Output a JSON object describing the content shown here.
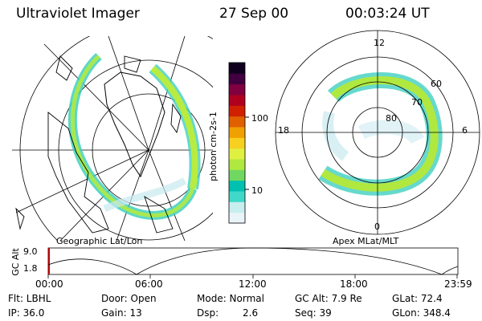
{
  "header": {
    "instrument": "Ultraviolet Imager",
    "date": "27 Sep 00",
    "time": "00:03:24 UT"
  },
  "geo_panel": {
    "label": "Geographic Lat/Lon"
  },
  "apex_panel": {
    "label": "Apex MLat/MLT",
    "mlt_labels": [
      "12",
      "18",
      "6",
      "0"
    ],
    "lat_labels": [
      "60",
      "70",
      "80"
    ]
  },
  "colorbar": {
    "unit_label": "photon cm-2s-1",
    "ticks": [
      "100",
      "10"
    ],
    "colors": [
      "#e8f4f8",
      "#c8eef0",
      "#40d8c8",
      "#00c0b0",
      "#70d860",
      "#b0e840",
      "#e0f040",
      "#f8d020",
      "#f0a000",
      "#e06000",
      "#d02000",
      "#b00020",
      "#800040",
      "#400040",
      "#100020"
    ]
  },
  "altitude_plot": {
    "y_title": "GC Alt",
    "y_ticks": [
      "9.0",
      "1.8"
    ],
    "x_ticks": [
      "00:00",
      "06:00",
      "12:00",
      "18:00",
      "23:59"
    ]
  },
  "status": {
    "flt": "Flt: LBHL",
    "ip": "IP: 36.0",
    "door": "Door: Open",
    "gain": "Gain: 13",
    "mode": "Mode: Normal",
    "dsp_label": "Dsp:",
    "dsp_value": "2.6",
    "gc_alt": "GC Alt: 7.9 Re",
    "seq": "Seq: 39",
    "glat": "GLat: 72.4",
    "glon": "GLon: 348.4"
  },
  "colors": {
    "aurora_green": "#90e040",
    "aurora_teal": "#40d0c0",
    "aurora_pale": "#c8eaf0"
  }
}
